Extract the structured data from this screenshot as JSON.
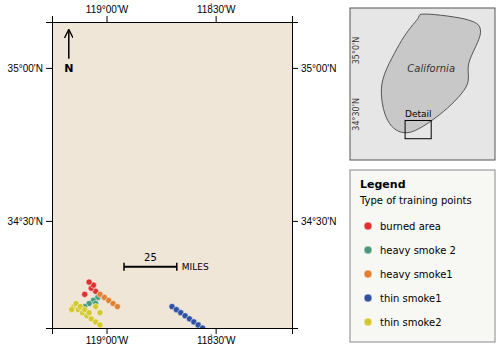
{
  "chart_data": {
    "type": "scatter",
    "xlim": [
      -119.25,
      -118.15
    ],
    "ylim": [
      34.15,
      35.15
    ],
    "xticks": [
      {
        "value": -119.0,
        "label": "119°00'W"
      },
      {
        "value": -118.5,
        "label": "118̀30'W"
      }
    ],
    "yticks": [
      {
        "value": 34.5,
        "label": "34°30'N"
      },
      {
        "value": 35.0,
        "label": "35°00'N"
      }
    ],
    "grid": false,
    "legend": "right",
    "marker": "circle",
    "legend_title": "Legend",
    "legend_subtitle": "Type of training points",
    "annotations": {
      "north_arrow": "N",
      "scalebar": "25",
      "scalebar_unit": "MILES",
      "inset_title": "California",
      "inset_detail": "Detail",
      "inset_lat_labels": [
        "35°0'N",
        "34°30'N"
      ]
    },
    "series": [
      {
        "name": "burned area",
        "color": "#e03030",
        "x": [
          -119.05,
          -119.07,
          -119.06,
          -119.08,
          -119.1
        ],
        "values": [
          34.27,
          34.28,
          34.29,
          34.3,
          34.26
        ]
      },
      {
        "name": "heavy smoke 2",
        "color": "#4a9a7a",
        "x": [
          -119.04,
          -119.06,
          -119.08,
          -119.1,
          -119.12,
          -119.05
        ],
        "values": [
          34.25,
          34.24,
          34.23,
          34.22,
          34.21,
          34.23
        ]
      },
      {
        "name": "heavy smoke1",
        "color": "#e08030",
        "x": [
          -119.03,
          -119.01,
          -118.99,
          -118.97,
          -118.95
        ],
        "values": [
          34.26,
          34.25,
          34.24,
          34.23,
          34.22
        ]
      },
      {
        "name": "thin smoke1",
        "color": "#3050a0",
        "x": [
          -118.7,
          -118.68,
          -118.66,
          -118.64,
          -118.62,
          -118.6,
          -118.58,
          -118.56
        ],
        "values": [
          34.22,
          34.21,
          34.2,
          34.19,
          34.18,
          34.17,
          34.16,
          34.15
        ]
      },
      {
        "name": "thin smoke2",
        "color": "#d4c830",
        "x": [
          -119.15,
          -119.13,
          -119.11,
          -119.09,
          -119.07,
          -119.05,
          -119.03,
          -119.14,
          -119.12,
          -119.1,
          -119.08,
          -119.16,
          -119.05,
          -119.03
        ],
        "values": [
          34.22,
          34.21,
          34.2,
          34.19,
          34.18,
          34.17,
          34.16,
          34.23,
          34.22,
          34.21,
          34.2,
          34.21,
          34.22,
          34.2
        ]
      }
    ]
  }
}
